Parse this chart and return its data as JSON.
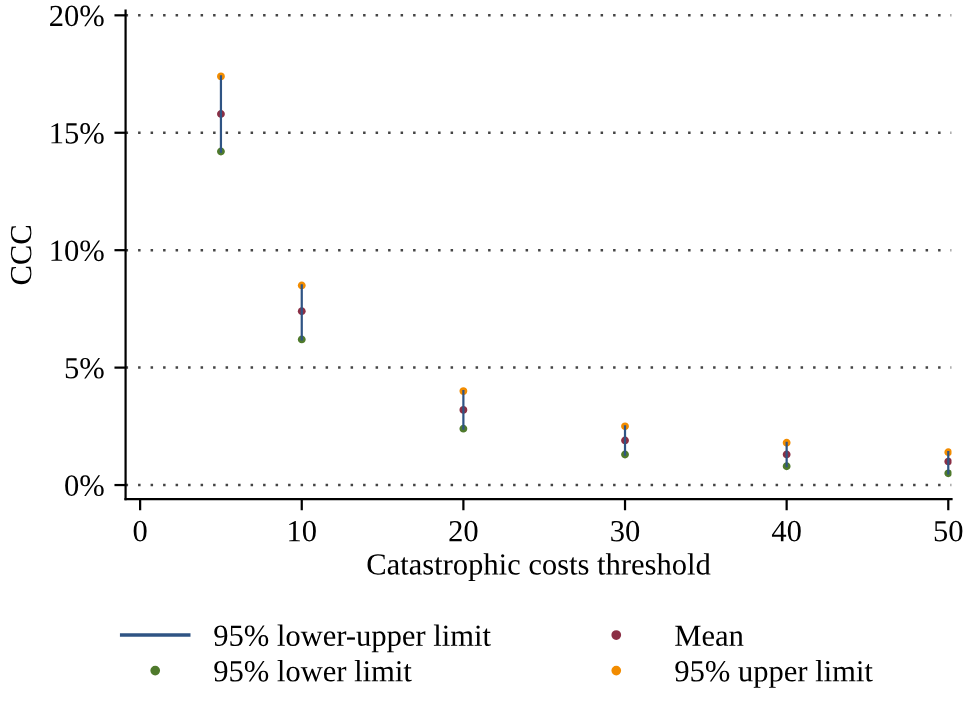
{
  "chart_data": {
    "type": "scatter",
    "xlabel": "Catastrophic costs threshold",
    "ylabel": "CCC",
    "x": [
      5,
      10,
      20,
      30,
      40,
      50
    ],
    "xlim": [
      -0.9,
      50.2
    ],
    "xticks": [
      0,
      10,
      20,
      30,
      40,
      50
    ],
    "ylim": [
      -0.6,
      20.2
    ],
    "yticks": [
      {
        "value": 0,
        "label": "0%"
      },
      {
        "value": 5,
        "label": "5%"
      },
      {
        "value": 10,
        "label": "10%"
      },
      {
        "value": 15,
        "label": "15%"
      },
      {
        "value": 20,
        "label": "20%"
      }
    ],
    "grid": "y",
    "legend": "bottom",
    "series": [
      {
        "name": "95% lower-upper limit",
        "type": "line",
        "marker": "none",
        "color": "#2f5484",
        "x": [
          5,
          5,
          null,
          10,
          10,
          null,
          20,
          20,
          null,
          30,
          30,
          null,
          40,
          40,
          null,
          50,
          50
        ],
        "values": [
          14.2,
          17.4,
          null,
          6.2,
          8.5,
          null,
          2.4,
          4.0,
          null,
          1.3,
          2.5,
          null,
          0.8,
          1.8,
          null,
          0.5,
          1.4
        ]
      },
      {
        "name": "Mean",
        "marker": "circle",
        "color": "#8b2f45",
        "values": [
          15.8,
          7.4,
          3.2,
          1.9,
          1.3,
          1.0
        ]
      },
      {
        "name": "95% lower limit",
        "marker": "circle",
        "color": "#4f7a2c",
        "values": [
          14.2,
          6.2,
          2.4,
          1.3,
          0.8,
          0.5
        ]
      },
      {
        "name": "95% upper limit",
        "marker": "circle",
        "color": "#f28c00",
        "values": [
          17.4,
          8.5,
          4.0,
          2.5,
          1.8,
          1.4
        ]
      }
    ]
  }
}
